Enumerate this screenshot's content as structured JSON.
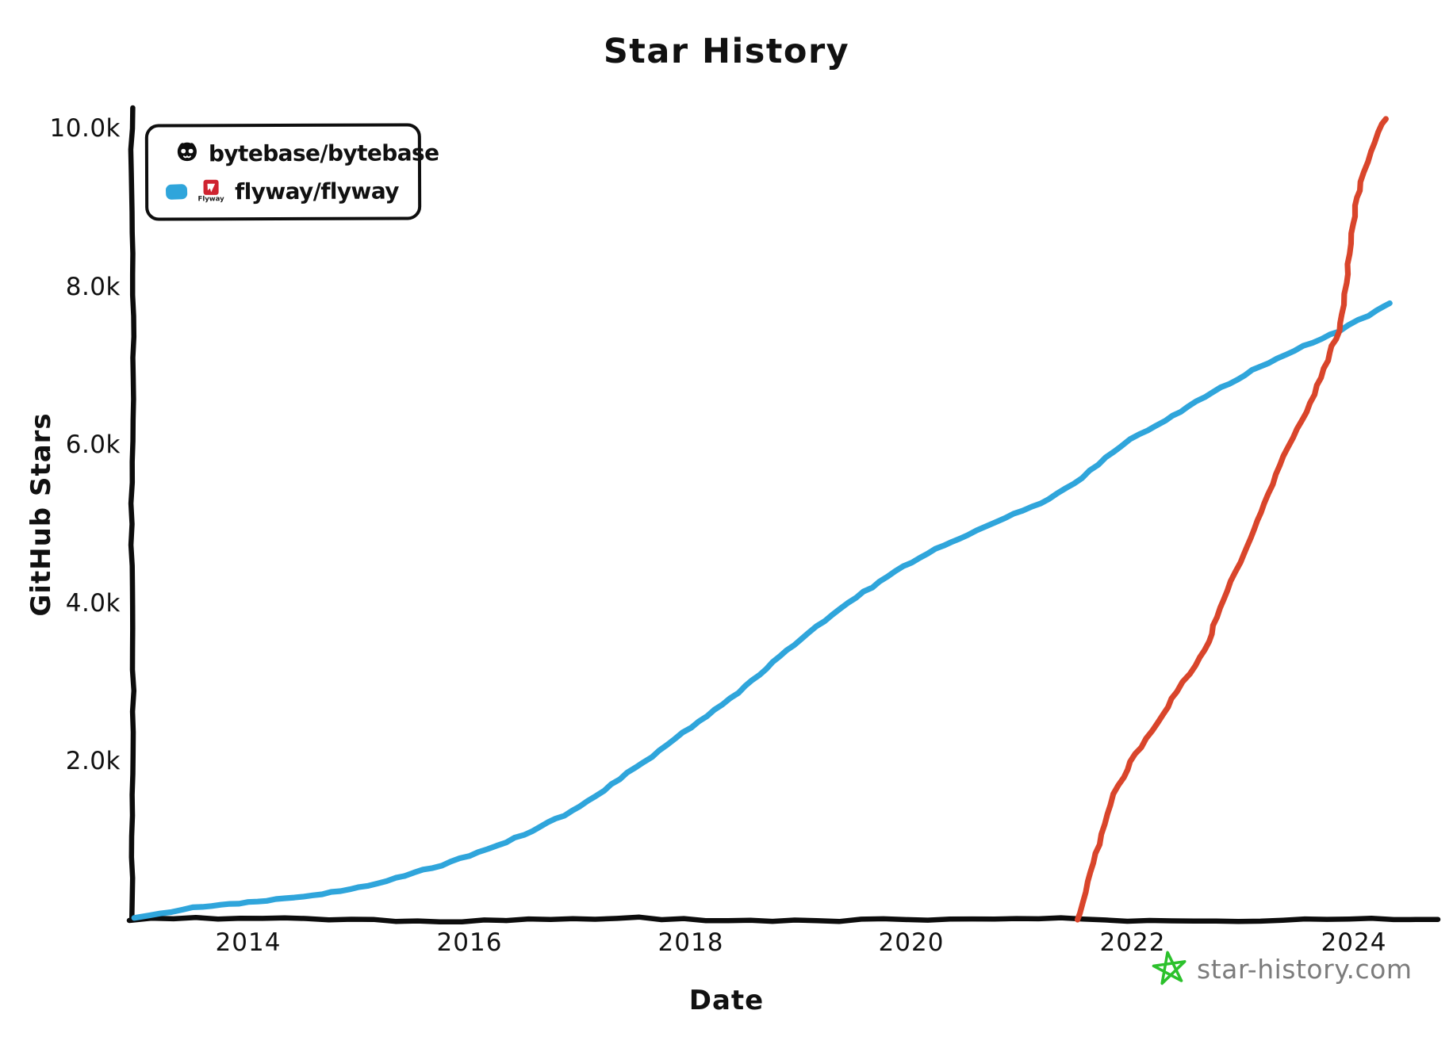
{
  "title": "Star History",
  "legend": {
    "items": [
      {
        "label": "bytebase/bytebase",
        "color": "#d9452b",
        "icon": "github-octocat"
      },
      {
        "label": "flyway/flyway",
        "color": "#2fa5db",
        "icon": "flyway-logo",
        "icon_caption": "Flyway"
      }
    ]
  },
  "y_axis": {
    "label": "GitHub Stars",
    "ticks": [
      "10.0k",
      "8.0k",
      "6.0k",
      "4.0k",
      "2.0k"
    ],
    "tick_values": [
      10000,
      8000,
      6000,
      4000,
      2000
    ]
  },
  "x_axis": {
    "label": "Date",
    "ticks": [
      "2014",
      "2016",
      "2018",
      "2020",
      "2022",
      "2024"
    ],
    "tick_values": [
      2014,
      2016,
      2018,
      2020,
      2022,
      2024
    ]
  },
  "footer": {
    "site": "star-history.com",
    "star_color": "#2cc12c",
    "text_color": "#7c7c7c"
  },
  "chart_data": {
    "type": "line",
    "title": "Star History",
    "xlabel": "Date",
    "ylabel": "GitHub Stars",
    "xlim": [
      2012.95,
      2024.75
    ],
    "ylim": [
      0,
      10000
    ],
    "grid": false,
    "legend_position": "top-left",
    "axis_color": "#0c0c0c",
    "style": "hand-drawn-xkcd",
    "series": [
      {
        "name": "bytebase/bytebase",
        "color": "#d9452b",
        "points": [
          [
            2021.5,
            0
          ],
          [
            2021.6,
            480
          ],
          [
            2021.7,
            950
          ],
          [
            2021.8,
            1450
          ],
          [
            2021.92,
            1800
          ],
          [
            2022.03,
            2090
          ],
          [
            2022.23,
            2490
          ],
          [
            2022.39,
            2890
          ],
          [
            2022.56,
            3220
          ],
          [
            2022.68,
            3520
          ],
          [
            2022.78,
            3950
          ],
          [
            2022.97,
            4520
          ],
          [
            2023.2,
            5250
          ],
          [
            2023.4,
            5950
          ],
          [
            2023.54,
            6320
          ],
          [
            2023.7,
            6850
          ],
          [
            2023.8,
            7250
          ],
          [
            2023.86,
            7450
          ],
          [
            2023.92,
            8050
          ],
          [
            2024.0,
            8890
          ],
          [
            2024.07,
            9320
          ],
          [
            2024.19,
            9820
          ],
          [
            2024.29,
            10120
          ]
        ]
      },
      {
        "name": "flyway/flyway",
        "color": "#2fa5db",
        "points": [
          [
            2012.97,
            10
          ],
          [
            2013.5,
            140
          ],
          [
            2014,
            225
          ],
          [
            2014.5,
            300
          ],
          [
            2015,
            420
          ],
          [
            2015.5,
            590
          ],
          [
            2016,
            800
          ],
          [
            2016.5,
            1070
          ],
          [
            2017,
            1430
          ],
          [
            2017.5,
            1930
          ],
          [
            2018,
            2440
          ],
          [
            2018.5,
            2950
          ],
          [
            2019,
            3540
          ],
          [
            2019.5,
            4060
          ],
          [
            2020,
            4520
          ],
          [
            2020.5,
            4880
          ],
          [
            2021,
            5180
          ],
          [
            2021.4,
            5450
          ],
          [
            2021.9,
            5980
          ],
          [
            2022.3,
            6300
          ],
          [
            2022.8,
            6720
          ],
          [
            2023.3,
            7100
          ],
          [
            2023.86,
            7450
          ],
          [
            2024.32,
            7800
          ]
        ]
      }
    ]
  }
}
